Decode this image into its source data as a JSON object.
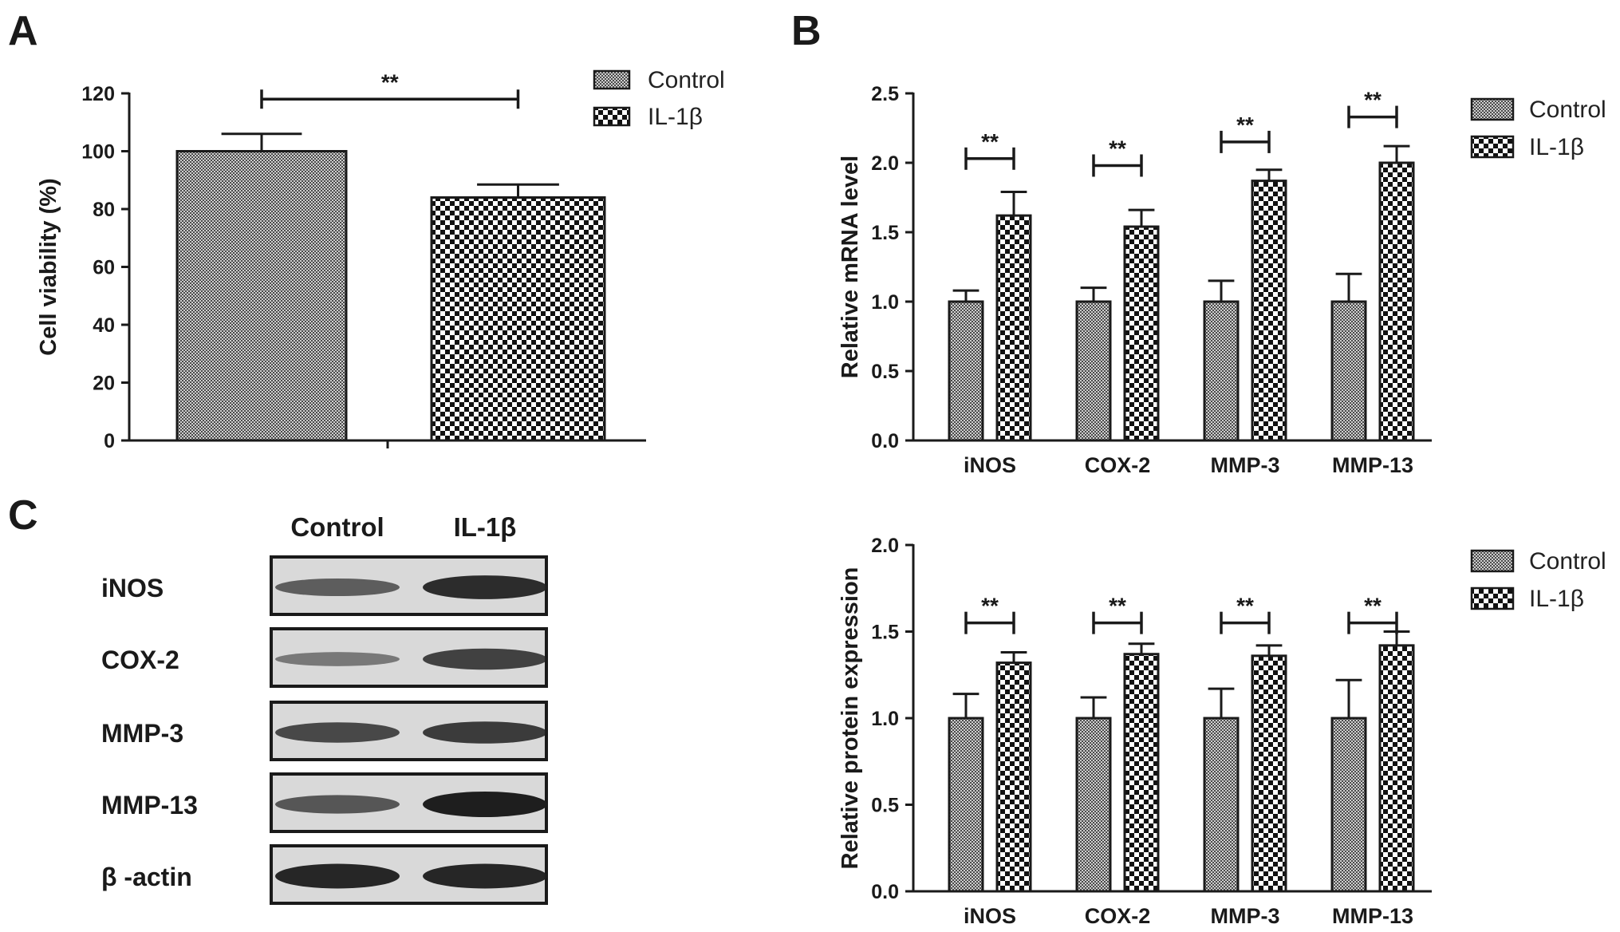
{
  "panels": {
    "A": "A",
    "B": "B",
    "C": "C"
  },
  "colors": {
    "ink": "#1a1a1a",
    "bar_fill_light": "#9a9a9a",
    "blot_background": "#d9d9d9"
  },
  "chart_data": [
    {
      "panel": "A",
      "type": "bar",
      "categories": [
        ""
      ],
      "series": [
        {
          "name": "Control",
          "pattern": "fine-dots",
          "values": [
            100
          ],
          "errors": [
            6
          ]
        },
        {
          "name": "IL-1β",
          "pattern": "checker",
          "values": [
            84
          ],
          "errors": [
            4.5
          ]
        }
      ],
      "ylabel": "Cell viability (%)",
      "ylim": [
        0,
        120
      ],
      "yticks": [
        0,
        20,
        40,
        60,
        80,
        100,
        120
      ],
      "ytick_labels": [
        "0",
        "20",
        "40",
        "60",
        "80",
        "100",
        "120"
      ],
      "significance": [
        {
          "between": [
            "Control",
            "IL-1β"
          ],
          "category": 0,
          "label": "**",
          "level": 118
        }
      ],
      "legend": "top-right",
      "grid": false
    },
    {
      "panel": "B-top",
      "type": "bar",
      "categories": [
        "iNOS",
        "COX-2",
        "MMP-3",
        "MMP-13"
      ],
      "series": [
        {
          "name": "Control",
          "pattern": "fine-dots",
          "values": [
            1.0,
            1.0,
            1.0,
            1.0
          ],
          "errors": [
            0.08,
            0.1,
            0.15,
            0.2
          ]
        },
        {
          "name": "IL-1β",
          "pattern": "checker",
          "values": [
            1.62,
            1.54,
            1.87,
            2.0
          ],
          "errors": [
            0.17,
            0.12,
            0.08,
            0.12
          ]
        }
      ],
      "ylabel": "Relative mRNA level",
      "ylim": [
        0,
        2.5
      ],
      "yticks": [
        0,
        0.5,
        1,
        1.5,
        2,
        2.5
      ],
      "ytick_labels": [
        "0.0",
        "0.5",
        "1.0",
        "1.5",
        "2.0",
        "2.5"
      ],
      "significance": [
        {
          "category": 0,
          "label": "**",
          "level": 2.03
        },
        {
          "category": 1,
          "label": "**",
          "level": 1.98
        },
        {
          "category": 2,
          "label": "**",
          "level": 2.15
        },
        {
          "category": 3,
          "label": "**",
          "level": 2.33
        }
      ],
      "legend": "top-right",
      "grid": false
    },
    {
      "panel": "B-bottom",
      "type": "bar",
      "categories": [
        "iNOS",
        "COX-2",
        "MMP-3",
        "MMP-13"
      ],
      "series": [
        {
          "name": "Control",
          "pattern": "fine-dots",
          "values": [
            1.0,
            1.0,
            1.0,
            1.0
          ],
          "errors": [
            0.14,
            0.12,
            0.17,
            0.22
          ]
        },
        {
          "name": "IL-1β",
          "pattern": "checker",
          "values": [
            1.32,
            1.37,
            1.36,
            1.42
          ],
          "errors": [
            0.06,
            0.06,
            0.06,
            0.08
          ]
        }
      ],
      "ylabel": "Relative protein expression",
      "ylim": [
        0,
        2.0
      ],
      "yticks": [
        0,
        0.5,
        1,
        1.5,
        2
      ],
      "ytick_labels": [
        "0.0",
        "0.5",
        "1.0",
        "1.5",
        "2.0"
      ],
      "significance": [
        {
          "category": 0,
          "label": "**",
          "level": 1.55
        },
        {
          "category": 1,
          "label": "**",
          "level": 1.55
        },
        {
          "category": 2,
          "label": "**",
          "level": 1.55
        },
        {
          "category": 3,
          "label": "**",
          "level": 1.55
        }
      ],
      "legend": "top-right",
      "grid": false
    }
  ],
  "western_blot": {
    "columns": [
      "Control",
      "IL-1β"
    ],
    "rows": [
      {
        "label": "iNOS",
        "intensity": [
          0.55,
          0.9
        ]
      },
      {
        "label": "COX-2",
        "intensity": [
          0.35,
          0.75
        ]
      },
      {
        "label": "MMP-3",
        "intensity": [
          0.7,
          0.8
        ]
      },
      {
        "label": "MMP-13",
        "intensity": [
          0.6,
          1.0
        ]
      },
      {
        "label": "β -actin",
        "intensity": [
          0.95,
          0.95
        ]
      }
    ]
  }
}
